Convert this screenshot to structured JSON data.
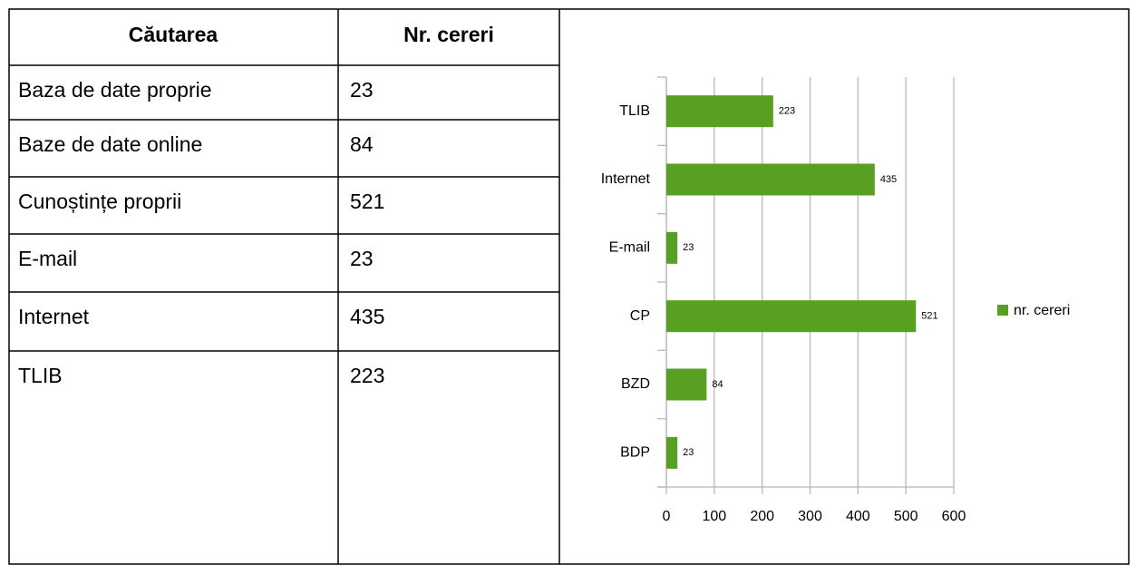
{
  "table": {
    "header": [
      "Căutarea",
      "Nr. cereri"
    ],
    "rows": [
      [
        "Baza de date proprie",
        "23"
      ],
      [
        "Baze de date online",
        "84"
      ],
      [
        "Cunoștințe proprii",
        "521"
      ],
      [
        "E-mail",
        "23"
      ],
      [
        "Internet",
        "435"
      ],
      [
        "TLIB",
        "223"
      ]
    ]
  },
  "chart_data": {
    "type": "hbar",
    "categories": [
      "TLIB",
      "Internet",
      "E-mail",
      "CP",
      "BZD",
      "BDP"
    ],
    "series": [
      {
        "name": "nr. cereri",
        "color": "#57a021",
        "values": [
          223,
          435,
          23,
          521,
          84,
          23
        ]
      }
    ],
    "xlim": [
      0,
      600
    ],
    "xticks": [
      0,
      100,
      200,
      300,
      400,
      500,
      600
    ],
    "grid": true,
    "legend": "right"
  }
}
